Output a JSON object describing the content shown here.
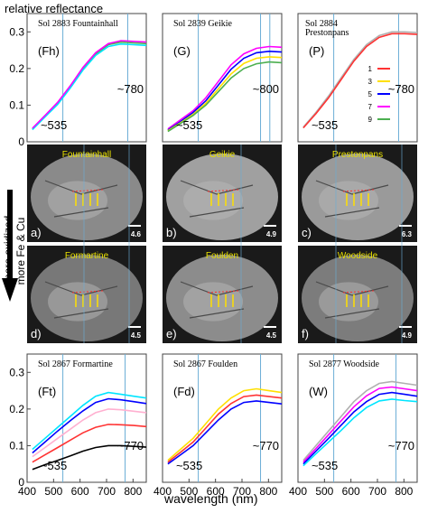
{
  "figure": {
    "ylabel": "relative reflectance",
    "xlabel": "wavelength (nm)",
    "side_arrow": [
      "more oxidized",
      "more Fe & Cu"
    ]
  },
  "colors": {
    "blue_line": "#6baed6",
    "series": [
      "#ff00ff",
      "#00e5ff",
      "#0000ff",
      "#ff3333",
      "#ffe000",
      "#4caf50",
      "#ffb0d0",
      "#000000",
      "#b0b0b0"
    ]
  },
  "photos": [
    {
      "letter": "a)",
      "name": "Fountainhall",
      "scale": "4.6"
    },
    {
      "letter": "b)",
      "name": "Geikie",
      "scale": "4.9"
    },
    {
      "letter": "c)",
      "name": "Prestonpans",
      "scale": "6.3"
    },
    {
      "letter": "d)",
      "name": "Formartine",
      "scale": "4.5"
    },
    {
      "letter": "e)",
      "name": "Foulden",
      "scale": "4.5"
    },
    {
      "letter": "f)",
      "name": "Woodside",
      "scale": "4.9"
    }
  ],
  "legend": {
    "items": [
      "1",
      "3",
      "5",
      "7",
      "9"
    ]
  },
  "chart_data": [
    {
      "type": "line",
      "sol_label": [
        "Sol 2883 Fountainhall"
      ],
      "tag": "(Fh)",
      "annotations": [
        "~535",
        "~780"
      ],
      "xlim": [
        400,
        850
      ],
      "ylim": [
        0,
        0.35
      ],
      "x_ticks": [],
      "y_ticks": [
        "0",
        "0.1",
        "0.2",
        "0.3"
      ],
      "band_lines": [
        535,
        780
      ],
      "series": [
        {
          "values": [
            0.035,
            0.07,
            0.105,
            0.15,
            0.2,
            0.24,
            0.265,
            0.272,
            0.27,
            0.268
          ]
        },
        {
          "values": [
            0.033,
            0.068,
            0.102,
            0.147,
            0.196,
            0.236,
            0.26,
            0.267,
            0.265,
            0.263
          ]
        },
        {
          "values": [
            0.037,
            0.072,
            0.108,
            0.153,
            0.203,
            0.243,
            0.268,
            0.276,
            0.274,
            0.272
          ]
        }
      ]
    },
    {
      "type": "line",
      "sol_label": [
        "Sol 2839 Geikie"
      ],
      "tag": "(G)",
      "annotations": [
        "~535",
        "~800"
      ],
      "xlim": [
        400,
        850
      ],
      "ylim": [
        0,
        0.35
      ],
      "x_ticks": [],
      "y_ticks": [],
      "band_lines": [
        535,
        770,
        805
      ],
      "series": [
        {
          "values": [
            0.035,
            0.06,
            0.085,
            0.12,
            0.165,
            0.21,
            0.24,
            0.255,
            0.26,
            0.258
          ]
        },
        {
          "values": [
            0.032,
            0.055,
            0.08,
            0.112,
            0.155,
            0.198,
            0.228,
            0.243,
            0.247,
            0.245
          ]
        },
        {
          "values": [
            0.03,
            0.052,
            0.075,
            0.105,
            0.145,
            0.185,
            0.214,
            0.228,
            0.232,
            0.23
          ]
        },
        {
          "values": [
            0.028,
            0.05,
            0.072,
            0.1,
            0.137,
            0.174,
            0.2,
            0.213,
            0.218,
            0.216
          ]
        }
      ]
    },
    {
      "type": "line",
      "sol_label": [
        "Sol 2884",
        "Prestonpans"
      ],
      "tag": "(P)",
      "annotations": [
        "~535",
        "~780"
      ],
      "xlim": [
        400,
        850
      ],
      "ylim": [
        0,
        0.35
      ],
      "x_ticks": [],
      "y_ticks": [],
      "band_lines": [
        535,
        780
      ],
      "series": [
        {
          "values": [
            0.04,
            0.08,
            0.125,
            0.175,
            0.225,
            0.265,
            0.29,
            0.3,
            0.3,
            0.298
          ]
        },
        {
          "values": [
            0.038,
            0.077,
            0.12,
            0.17,
            0.22,
            0.26,
            0.285,
            0.295,
            0.295,
            0.293
          ]
        }
      ]
    },
    {
      "type": "line",
      "sol_label": [
        "Sol 2867 Formartine"
      ],
      "tag": "(Ft)",
      "annotations": [
        "~535",
        "~770"
      ],
      "xlim": [
        400,
        850
      ],
      "ylim": [
        0,
        0.35
      ],
      "x_ticks": [
        "400",
        "500",
        "600",
        "700",
        "800"
      ],
      "y_ticks": [
        "0",
        "0.1",
        "0.2",
        "0.3"
      ],
      "band_lines": [
        535,
        770
      ],
      "series": [
        {
          "values": [
            0.09,
            0.12,
            0.15,
            0.18,
            0.21,
            0.235,
            0.245,
            0.24,
            0.235,
            0.23
          ]
        },
        {
          "values": [
            0.08,
            0.11,
            0.14,
            0.168,
            0.195,
            0.218,
            0.228,
            0.225,
            0.22,
            0.215
          ]
        },
        {
          "values": [
            0.07,
            0.095,
            0.12,
            0.145,
            0.17,
            0.19,
            0.2,
            0.198,
            0.194,
            0.19
          ]
        },
        {
          "values": [
            0.055,
            0.075,
            0.095,
            0.115,
            0.135,
            0.15,
            0.158,
            0.157,
            0.155,
            0.152
          ]
        },
        {
          "values": [
            0.035,
            0.048,
            0.06,
            0.072,
            0.085,
            0.095,
            0.1,
            0.1,
            0.098,
            0.096
          ]
        }
      ]
    },
    {
      "type": "line",
      "sol_label": [
        "Sol 2867 Foulden"
      ],
      "tag": "(Fd)",
      "annotations": [
        "~535",
        "~770"
      ],
      "xlim": [
        400,
        850
      ],
      "ylim": [
        0,
        0.35
      ],
      "x_ticks": [
        "400",
        "500",
        "600",
        "700",
        "800"
      ],
      "y_ticks": [],
      "band_lines": [
        535,
        770
      ],
      "series": [
        {
          "values": [
            0.06,
            0.09,
            0.12,
            0.16,
            0.2,
            0.23,
            0.25,
            0.255,
            0.25,
            0.245
          ]
        },
        {
          "values": [
            0.055,
            0.082,
            0.11,
            0.148,
            0.186,
            0.215,
            0.234,
            0.238,
            0.234,
            0.23
          ]
        },
        {
          "values": [
            0.05,
            0.075,
            0.1,
            0.135,
            0.17,
            0.2,
            0.218,
            0.222,
            0.218,
            0.214
          ]
        }
      ]
    },
    {
      "type": "line",
      "sol_label": [
        "Sol 2877 Woodside"
      ],
      "tag": "(W)",
      "annotations": [
        "~535",
        "~770"
      ],
      "xlim": [
        400,
        850
      ],
      "ylim": [
        0,
        0.35
      ],
      "x_ticks": [
        "400",
        "500",
        "600",
        "700",
        "800"
      ],
      "y_ticks": [],
      "band_lines": [
        535,
        770
      ],
      "series": [
        {
          "values": [
            0.06,
            0.1,
            0.14,
            0.18,
            0.22,
            0.25,
            0.27,
            0.275,
            0.27,
            0.265
          ]
        },
        {
          "values": [
            0.055,
            0.092,
            0.13,
            0.168,
            0.206,
            0.236,
            0.256,
            0.26,
            0.255,
            0.25
          ]
        },
        {
          "values": [
            0.05,
            0.085,
            0.12,
            0.156,
            0.192,
            0.22,
            0.24,
            0.245,
            0.24,
            0.235
          ]
        },
        {
          "values": [
            0.045,
            0.078,
            0.11,
            0.142,
            0.176,
            0.204,
            0.222,
            0.227,
            0.223,
            0.22
          ]
        }
      ]
    }
  ]
}
